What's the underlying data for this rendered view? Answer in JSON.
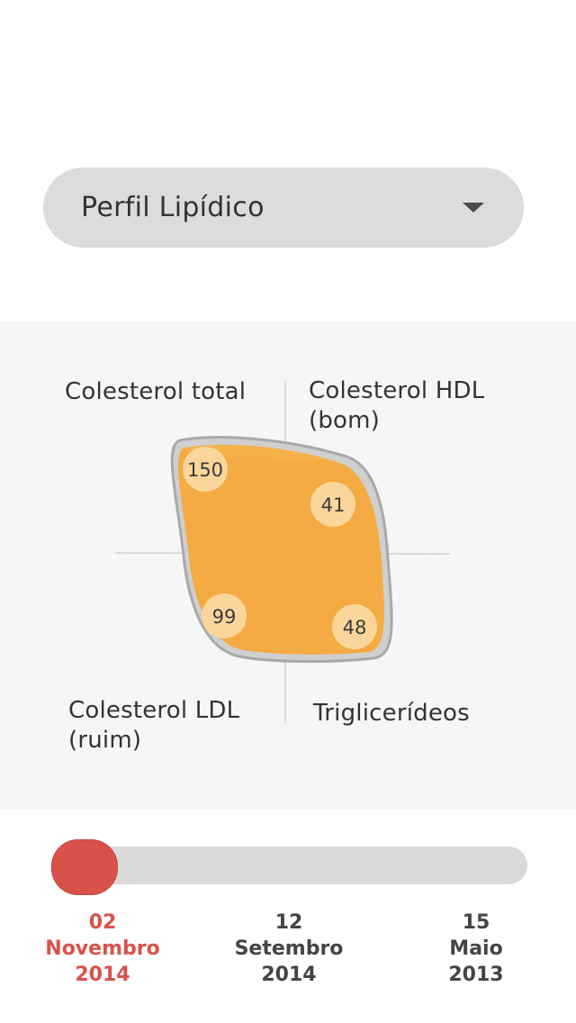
{
  "selector": {
    "label": "Perfil Lipídico",
    "icon": "caret-down-icon"
  },
  "chart_data": {
    "type": "radar",
    "axes": [
      {
        "name": "Colesterol total",
        "value": 150
      },
      {
        "name": "Colesterol HDL (bom)",
        "value": 41
      },
      {
        "name": "Colesterol LDL (ruim)",
        "value": 99
      },
      {
        "name": "Triglicerídeos",
        "value": 48
      }
    ],
    "fill_color": "#f5a93b",
    "outline_color": "#bdbdbd"
  },
  "quadrants": {
    "top_left": "Colesterol total",
    "top_right_line1": "Colesterol HDL",
    "top_right_line2": "(bom)",
    "bottom_left_line1": "Colesterol LDL",
    "bottom_left_line2": "(ruim)",
    "bottom_right": "Triglicerídeos"
  },
  "values": {
    "total": "150",
    "hdl": "41",
    "ldl": "99",
    "trig": "48"
  },
  "timeline": {
    "dates": [
      {
        "day": "02",
        "month": "Novembro",
        "year": "2014",
        "active": true
      },
      {
        "day": "12",
        "month": "Setembro",
        "year": "2014",
        "active": false
      },
      {
        "day": "15",
        "month": "Maio",
        "year": "2013",
        "active": false
      }
    ],
    "active_color": "#d9524a"
  }
}
